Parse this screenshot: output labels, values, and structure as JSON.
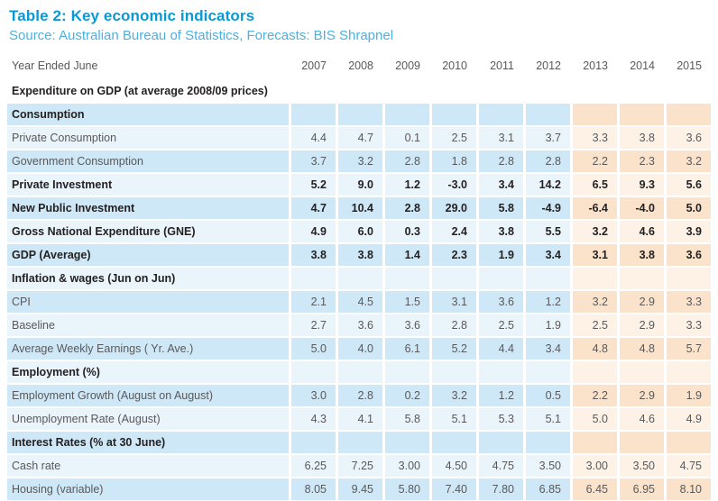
{
  "header": {
    "title": "Table 2: Key economic indicators",
    "source": "Source: Australian Bureau of Statistics, Forecasts: BIS Shrapnel"
  },
  "colors": {
    "title_blue": "#0a99d5",
    "source_blue": "#4db0e1",
    "text_dark": "#242122",
    "text_gray": "#59595b",
    "actual_medium": "#cee8f7",
    "actual_faint": "#eaf4fb",
    "forecast_medium": "#fae3ca",
    "forecast_faint": "#fdf2e5"
  },
  "table": {
    "year_label": "Year Ended June",
    "years": [
      "2007",
      "2008",
      "2009",
      "2010",
      "2011",
      "2012",
      "2013",
      "2014",
      "2015"
    ],
    "forecast_start_index": 6,
    "rows": [
      {
        "label": "Expenditure on GDP (at average 2008/09 prices)",
        "bold": true,
        "style": "plain",
        "values": [
          "",
          "",
          "",
          "",
          "",
          "",
          "",
          "",
          ""
        ]
      },
      {
        "label": "Consumption",
        "bold": true,
        "style": "medium",
        "values": [
          "",
          "",
          "",
          "",
          "",
          "",
          "",
          "",
          ""
        ]
      },
      {
        "label": "Private Consumption",
        "bold": false,
        "style": "faint",
        "values": [
          "4.4",
          "4.7",
          "0.1",
          "2.5",
          "3.1",
          "3.7",
          "3.3",
          "3.8",
          "3.6"
        ]
      },
      {
        "label": "Government Consumption",
        "bold": false,
        "style": "medium",
        "values": [
          "3.7",
          "3.2",
          "2.8",
          "1.8",
          "2.8",
          "2.8",
          "2.2",
          "2.3",
          "3.2"
        ]
      },
      {
        "label": "Private Investment",
        "bold": true,
        "style": "faint",
        "values": [
          "5.2",
          "9.0",
          "1.2",
          "-3.0",
          "3.4",
          "14.2",
          "6.5",
          "9.3",
          "5.6"
        ]
      },
      {
        "label": "New Public Investment",
        "bold": true,
        "style": "medium",
        "values": [
          "4.7",
          "10.4",
          "2.8",
          "29.0",
          "5.8",
          "-4.9",
          "-6.4",
          "-4.0",
          "5.0"
        ]
      },
      {
        "label": "Gross National  Expenditure (GNE)",
        "bold": true,
        "style": "faint",
        "values": [
          "4.9",
          "6.0",
          "0.3",
          "2.4",
          "3.8",
          "5.5",
          "3.2",
          "4.6",
          "3.9"
        ]
      },
      {
        "label": "GDP (Average)",
        "bold": true,
        "style": "medium",
        "values": [
          "3.8",
          "3.8",
          "1.4",
          "2.3",
          "1.9",
          "3.4",
          "3.1",
          "3.8",
          "3.6"
        ]
      },
      {
        "label": "Inflation & wages (Jun on Jun)",
        "bold": true,
        "style": "faint",
        "values": [
          "",
          "",
          "",
          "",
          "",
          "",
          "",
          "",
          ""
        ]
      },
      {
        "label": "CPI",
        "bold": false,
        "style": "medium",
        "values": [
          "2.1",
          "4.5",
          "1.5",
          "3.1",
          "3.6",
          "1.2",
          "3.2",
          "2.9",
          "3.3"
        ]
      },
      {
        "label": "Baseline",
        "bold": false,
        "style": "faint",
        "values": [
          "2.7",
          "3.6",
          "3.6",
          "2.8",
          "2.5",
          "1.9",
          "2.5",
          "2.9",
          "3.3"
        ]
      },
      {
        "label": "Average Weekly Earnings ( Yr. Ave.)",
        "bold": false,
        "style": "medium",
        "values": [
          "5.0",
          "4.0",
          "6.1",
          "5.2",
          "4.4",
          "3.4",
          "4.8",
          "4.8",
          "5.7"
        ]
      },
      {
        "label": "Employment (%)",
        "bold": true,
        "style": "faint",
        "values": [
          "",
          "",
          "",
          "",
          "",
          "",
          "",
          "",
          ""
        ]
      },
      {
        "label": "Employment Growth (August on August)",
        "bold": false,
        "style": "medium",
        "values": [
          "3.0",
          "2.8",
          "0.2",
          "3.2",
          "1.2",
          "0.5",
          "2.2",
          "2.9",
          "1.9"
        ]
      },
      {
        "label": "Unemployment Rate (August)",
        "bold": false,
        "style": "faint",
        "values": [
          "4.3",
          "4.1",
          "5.8",
          "5.1",
          "5.3",
          "5.1",
          "5.0",
          "4.6",
          "4.9"
        ]
      },
      {
        "label": "Interest Rates (% at 30 June)",
        "bold": true,
        "style": "medium",
        "values": [
          "",
          "",
          "",
          "",
          "",
          "",
          "",
          "",
          ""
        ]
      },
      {
        "label": "Cash rate",
        "bold": false,
        "style": "faint",
        "values": [
          "6.25",
          "7.25",
          "3.00",
          "4.50",
          "4.75",
          "3.50",
          "3.00",
          "3.50",
          "4.75"
        ]
      },
      {
        "label": "Housing (variable)",
        "bold": false,
        "style": "medium",
        "values": [
          "8.05",
          "9.45",
          "5.80",
          "7.40",
          "7.80",
          "6.85",
          "6.45",
          "6.95",
          "8.10"
        ]
      }
    ]
  }
}
